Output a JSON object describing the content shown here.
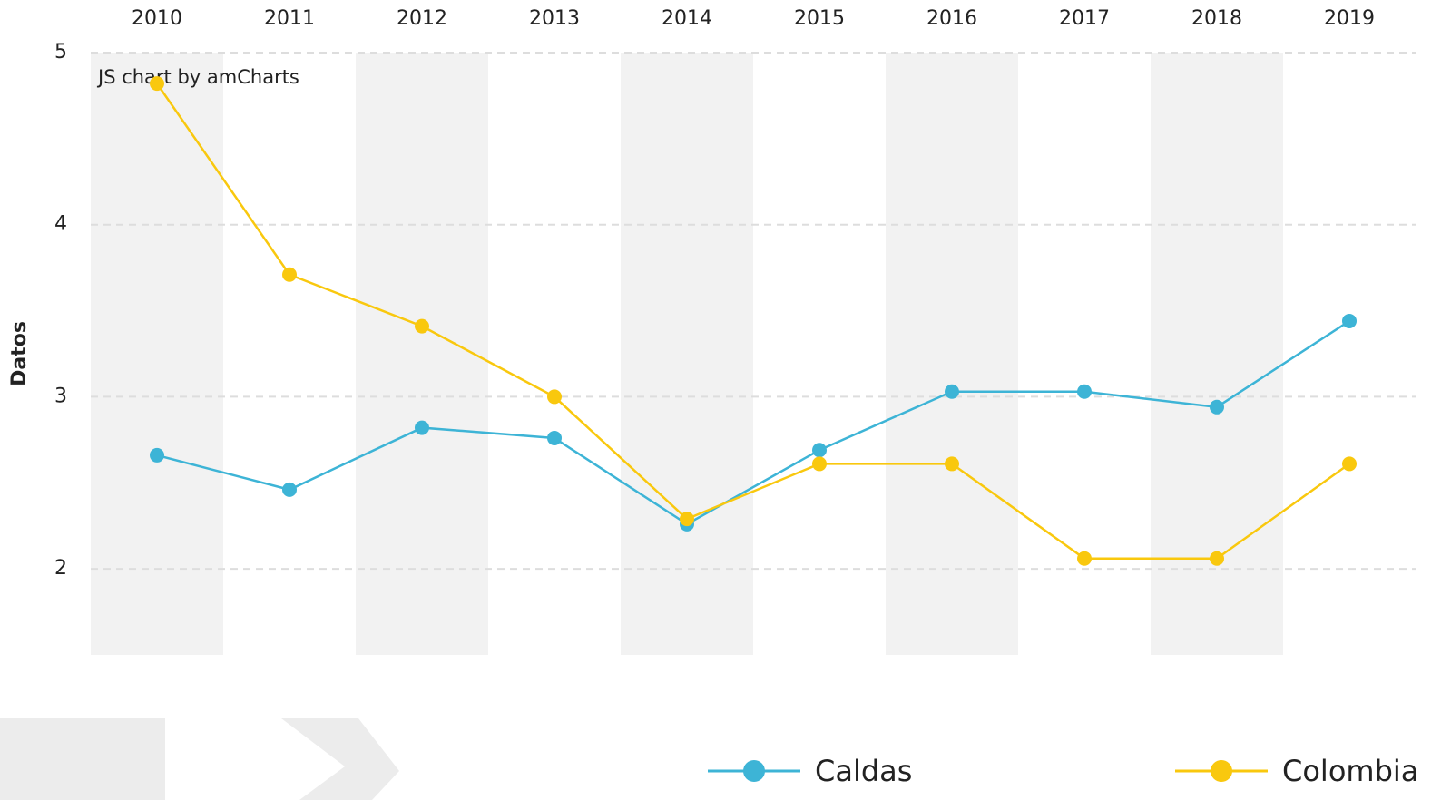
{
  "chart_data": {
    "type": "line",
    "credit": "JS chart by amCharts",
    "y_label": "Datos",
    "categories": [
      "2010",
      "2011",
      "2012",
      "2013",
      "2014",
      "2015",
      "2016",
      "2017",
      "2018",
      "2019"
    ],
    "series": [
      {
        "name": "Caldas",
        "color": "#3db4d6",
        "values": [
          2.66,
          2.46,
          2.82,
          2.76,
          2.26,
          2.69,
          3.03,
          3.03,
          2.94,
          3.44
        ]
      },
      {
        "name": "Colombia",
        "color": "#f9c80e",
        "values": [
          4.82,
          3.71,
          3.41,
          3.0,
          2.29,
          2.61,
          2.61,
          2.06,
          2.06,
          2.61
        ]
      }
    ],
    "ylim": [
      1.5,
      5
    ],
    "yticks": [
      2,
      3,
      4,
      5
    ],
    "grid": true
  }
}
